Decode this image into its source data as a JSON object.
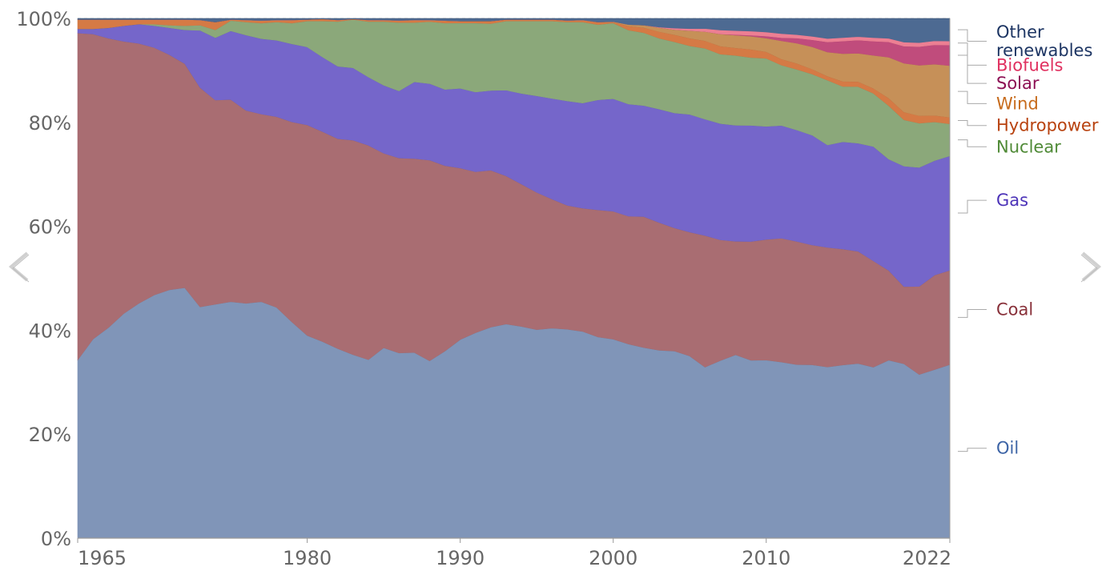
{
  "chart_data": {
    "type": "area",
    "stacked": true,
    "normalized": true,
    "x": [
      1965,
      1966,
      1967,
      1968,
      1969,
      1970,
      1971,
      1972,
      1973,
      1974,
      1975,
      1976,
      1977,
      1978,
      1979,
      1980,
      1981,
      1982,
      1983,
      1984,
      1985,
      1986,
      1987,
      1988,
      1989,
      1990,
      1991,
      1992,
      1993,
      1994,
      1995,
      1996,
      1997,
      1998,
      1999,
      2000,
      2001,
      2002,
      2003,
      2004,
      2005,
      2006,
      2007,
      2008,
      2009,
      2010,
      2011,
      2012,
      2013,
      2014,
      2015,
      2016,
      2017,
      2018,
      2019,
      2020,
      2021,
      2022
    ],
    "ylim": [
      0,
      100
    ],
    "y_ticks": [
      "0%",
      "20%",
      "40%",
      "60%",
      "80%",
      "100%"
    ],
    "x_ticks": [
      "1965",
      "1980",
      "1990",
      "2000",
      "2010",
      "2022"
    ],
    "x_tick_values": [
      1965,
      1980,
      1990,
      2000,
      2010,
      2022
    ],
    "grid": true,
    "legend_placement": "right",
    "series": [
      {
        "name": "Oil",
        "color": "#8095b8",
        "label_color": "#3d64a6",
        "label_pos": 17.3,
        "values": [
          34.3,
          38.3,
          40.5,
          43.2,
          45.2,
          46.8,
          47.8,
          48.2,
          44.5,
          45.0,
          45.5,
          45.2,
          45.5,
          44.4,
          41.6,
          39.0,
          38.2,
          37.2,
          36.0,
          35.3,
          37.6,
          36.5,
          36.3,
          34.3,
          36.6,
          38.9,
          40.2,
          41.0,
          41.2,
          40.9,
          40.4,
          40.7,
          41.0,
          40.3,
          39.3,
          38.9,
          38.1,
          37.4,
          37.1,
          36.8,
          35.9,
          33.8,
          35.3,
          36.2,
          35.1,
          35.3,
          34.7,
          34.4,
          34.9,
          34.1,
          34.4,
          34.6,
          33.8,
          34.9,
          33.9,
          32.5,
          33.9,
          34.6
        ]
      },
      {
        "name": "Coal",
        "color": "#a96d72",
        "label_color": "#883039",
        "label_pos": 44.0,
        "values": [
          62.9,
          58.7,
          55.7,
          52.4,
          50.0,
          47.6,
          45.2,
          43.1,
          42.2,
          39.3,
          38.9,
          37.1,
          36.1,
          36.7,
          38.5,
          40.5,
          40.8,
          41.2,
          42.1,
          42.4,
          38.4,
          38.4,
          37.9,
          38.8,
          36.3,
          33.6,
          31.5,
          30.5,
          28.5,
          27.5,
          26.6,
          25.0,
          24.3,
          24.0,
          24.8,
          25.0,
          25.1,
          25.7,
          25.2,
          24.2,
          24.4,
          26.0,
          24.0,
          22.4,
          23.4,
          23.9,
          24.4,
          24.4,
          24.1,
          23.8,
          23.0,
          22.2,
          21.0,
          17.6,
          15.0,
          17.5,
          19.0,
          18.8
        ]
      },
      {
        "name": "Gas",
        "color": "#7566ca",
        "label_color": "#4c33b8",
        "label_pos": 65.0,
        "values": [
          0.8,
          1.0,
          2.0,
          3.0,
          3.7,
          4.2,
          5.2,
          6.5,
          11.0,
          12.0,
          13.2,
          14.5,
          14.5,
          14.7,
          15.0,
          15.0,
          14.5,
          14.2,
          14.2,
          13.5,
          13.4,
          13.2,
          15.0,
          14.8,
          14.9,
          15.6,
          15.6,
          15.5,
          16.5,
          17.5,
          18.7,
          19.5,
          20.5,
          20.5,
          21.5,
          22.0,
          22.0,
          21.8,
          22.4,
          22.6,
          23.2,
          23.0,
          23.1,
          22.9,
          22.9,
          22.4,
          22.2,
          22.1,
          22.1,
          20.4,
          21.3,
          21.4,
          22.6,
          21.8,
          23.4,
          23.6,
          23.0,
          22.8
        ]
      },
      {
        "name": "Nuclear",
        "color": "#8ba87a",
        "label_color": "#4f8a36",
        "label_pos": 75.3,
        "values": [
          0.0,
          0.0,
          0.0,
          0.0,
          0.0,
          0.3,
          0.5,
          0.8,
          1.0,
          1.5,
          2.0,
          2.5,
          3.0,
          3.5,
          4.0,
          5.0,
          7.0,
          8.8,
          9.5,
          11.0,
          12.6,
          13.5,
          11.6,
          12.0,
          13.0,
          12.8,
          13.5,
          13.0,
          13.3,
          14.0,
          14.5,
          15.0,
          15.5,
          15.8,
          14.7,
          14.8,
          14.5,
          14.3,
          14.0,
          14.0,
          13.5,
          14.0,
          13.8,
          13.8,
          13.4,
          13.5,
          11.9,
          12.0,
          12.3,
          12.9,
          11.0,
          11.2,
          10.5,
          10.5,
          9.0,
          8.8,
          7.8,
          6.4
        ]
      },
      {
        "name": "Hydropower",
        "color": "#d57a45",
        "label_color": "#b8420f",
        "label_pos": 79.4,
        "values": [
          1.8,
          1.8,
          1.6,
          1.2,
          0.9,
          0.9,
          1.1,
          1.2,
          1.0,
          1.5,
          0.2,
          0.4,
          0.5,
          0.4,
          0.6,
          0.3,
          0.4,
          0.3,
          0.1,
          0.3,
          0.3,
          0.4,
          0.5,
          0.3,
          0.5,
          0.4,
          0.4,
          0.5,
          0.3,
          0.3,
          0.3,
          0.3,
          0.3,
          0.4,
          0.5,
          0.2,
          0.8,
          1.0,
          1.3,
          1.4,
          1.5,
          1.5,
          1.6,
          1.5,
          1.6,
          1.3,
          1.2,
          1.2,
          1.0,
          0.8,
          1.0,
          1.0,
          1.0,
          1.5,
          1.5,
          1.5,
          1.3,
          1.3
        ]
      },
      {
        "name": "Wind",
        "color": "#c69058",
        "label_color": "#c76b1c",
        "label_pos": 83.6,
        "values": [
          0.0,
          0.0,
          0.0,
          0.0,
          0.0,
          0.0,
          0.0,
          0.0,
          0.0,
          0.0,
          0.0,
          0.0,
          0.0,
          0.0,
          0.0,
          0.0,
          0.0,
          0.0,
          0.0,
          0.0,
          0.0,
          0.0,
          0.0,
          0.0,
          0.0,
          0.0,
          0.0,
          0.0,
          0.0,
          0.0,
          0.0,
          0.0,
          0.0,
          0.0,
          0.0,
          0.1,
          0.3,
          0.5,
          0.8,
          1.0,
          1.5,
          1.8,
          2.4,
          2.5,
          2.6,
          2.7,
          3.6,
          4.0,
          4.5,
          4.8,
          5.5,
          5.6,
          6.5,
          8.0,
          9.5,
          10.0,
          10.3,
          10.3
        ]
      },
      {
        "name": "Solar",
        "color": "#c04c7c",
        "label_color": "#8c1054",
        "label_pos": 87.5,
        "values": [
          0.0,
          0.0,
          0.0,
          0.0,
          0.0,
          0.0,
          0.0,
          0.0,
          0.0,
          0.0,
          0.0,
          0.0,
          0.0,
          0.0,
          0.0,
          0.0,
          0.0,
          0.0,
          0.0,
          0.0,
          0.0,
          0.0,
          0.0,
          0.0,
          0.0,
          0.0,
          0.0,
          0.0,
          0.0,
          0.0,
          0.0,
          0.0,
          0.0,
          0.0,
          0.0,
          0.0,
          0.0,
          0.0,
          0.0,
          0.0,
          0.0,
          0.0,
          0.0,
          0.1,
          0.2,
          0.4,
          0.6,
          1.0,
          1.4,
          2.0,
          2.5,
          2.6,
          2.8,
          3.0,
          3.3,
          3.7,
          3.9,
          4.1
        ]
      },
      {
        "name": "Biofuels",
        "color": "#ec7f93",
        "label_color": "#e0305f",
        "label_pos": 91.0,
        "values": [
          0.0,
          0.0,
          0.0,
          0.0,
          0.0,
          0.0,
          0.0,
          0.0,
          0.0,
          0.0,
          0.0,
          0.0,
          0.0,
          0.0,
          0.0,
          0.0,
          0.0,
          0.0,
          0.0,
          0.0,
          0.0,
          0.0,
          0.0,
          0.0,
          0.0,
          0.0,
          0.0,
          0.0,
          0.0,
          0.0,
          0.0,
          0.0,
          0.0,
          0.0,
          0.0,
          0.0,
          0.0,
          0.0,
          0.1,
          0.3,
          0.4,
          0.6,
          0.8,
          0.8,
          0.8,
          0.8,
          0.8,
          0.7,
          0.7,
          0.7,
          0.7,
          0.7,
          0.7,
          0.7,
          0.8,
          0.8,
          0.8,
          0.8
        ]
      },
      {
        "name": "Other renewables",
        "color": "#4d6a92",
        "label_color": "#1d3563",
        "label_pos": 95.6,
        "values": [
          0.2,
          0.2,
          0.2,
          0.2,
          0.2,
          0.2,
          0.2,
          0.2,
          0.3,
          0.7,
          0.2,
          0.3,
          0.4,
          0.3,
          0.3,
          0.2,
          0.1,
          0.3,
          0.1,
          0.3,
          0.3,
          0.4,
          0.3,
          0.3,
          0.4,
          0.5,
          0.5,
          0.5,
          0.2,
          0.2,
          0.2,
          0.2,
          0.4,
          0.3,
          0.7,
          0.6,
          1.2,
          1.3,
          1.7,
          1.9,
          2.0,
          2.0,
          2.3,
          2.4,
          2.5,
          2.7,
          3.0,
          3.2,
          3.6,
          4.0,
          3.8,
          3.6,
          3.8,
          3.9,
          4.6,
          4.8,
          4.5,
          4.5
        ]
      }
    ]
  },
  "nav": {
    "prev_icon": "chevron-left-icon",
    "next_icon": "chevron-right-icon"
  }
}
